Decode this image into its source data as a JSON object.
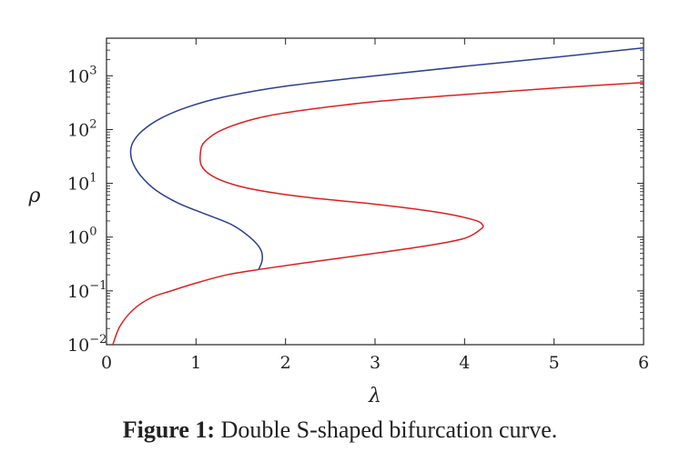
{
  "chart_data": {
    "type": "line",
    "xlabel": "λ",
    "ylabel": "ρ",
    "xlim": [
      0,
      6
    ],
    "ylim": [
      0.01,
      5000
    ],
    "yscale": "log",
    "x_ticks": [
      0,
      1,
      2,
      3,
      4,
      5,
      6
    ],
    "y_ticks": [
      {
        "value": 0.01,
        "base": "10",
        "exp": "−2"
      },
      {
        "value": 0.1,
        "base": "10",
        "exp": "−1"
      },
      {
        "value": 1,
        "base": "10",
        "exp": "0"
      },
      {
        "value": 10,
        "base": "10",
        "exp": "1"
      },
      {
        "value": 100,
        "base": "10",
        "exp": "2"
      },
      {
        "value": 1000,
        "base": "10",
        "exp": "3"
      }
    ],
    "grid": false,
    "series": [
      {
        "color": "#2b3f91",
        "points": [
          [
            1.7,
            0.25
          ],
          [
            1.74,
            0.38
          ],
          [
            1.72,
            0.6
          ],
          [
            1.6,
            1.0
          ],
          [
            1.4,
            1.7
          ],
          [
            1.1,
            2.7
          ],
          [
            0.8,
            4.3
          ],
          [
            0.55,
            7.5
          ],
          [
            0.38,
            14
          ],
          [
            0.29,
            25
          ],
          [
            0.27,
            40
          ],
          [
            0.3,
            60
          ],
          [
            0.4,
            95
          ],
          [
            0.6,
            160
          ],
          [
            0.9,
            260
          ],
          [
            1.3,
            400
          ],
          [
            2.0,
            640
          ],
          [
            3.0,
            1000
          ],
          [
            4.0,
            1500
          ],
          [
            5.0,
            2200
          ],
          [
            6.0,
            3300
          ]
        ]
      },
      {
        "color": "#dd1f1f",
        "points": [
          [
            0.07,
            0.01
          ],
          [
            0.15,
            0.022
          ],
          [
            0.3,
            0.045
          ],
          [
            0.5,
            0.075
          ],
          [
            0.72,
            0.1
          ],
          [
            1.0,
            0.14
          ],
          [
            1.35,
            0.2
          ],
          [
            1.7,
            0.25
          ],
          [
            2.2,
            0.33
          ],
          [
            3.0,
            0.5
          ],
          [
            3.6,
            0.7
          ],
          [
            4.0,
            0.95
          ],
          [
            4.18,
            1.4
          ],
          [
            4.2,
            1.7
          ],
          [
            4.1,
            2.1
          ],
          [
            3.7,
            2.9
          ],
          [
            3.0,
            4.1
          ],
          [
            2.2,
            5.6
          ],
          [
            1.6,
            8.0
          ],
          [
            1.25,
            12
          ],
          [
            1.07,
            20
          ],
          [
            1.05,
            38
          ],
          [
            1.1,
            60
          ],
          [
            1.3,
            100
          ],
          [
            1.7,
            165
          ],
          [
            2.2,
            230
          ],
          [
            3.0,
            330
          ],
          [
            4.0,
            450
          ],
          [
            5.0,
            590
          ],
          [
            6.0,
            750
          ]
        ]
      }
    ]
  },
  "caption": {
    "label": "Figure 1:",
    "text": " Double S-shaped bifurcation curve."
  }
}
